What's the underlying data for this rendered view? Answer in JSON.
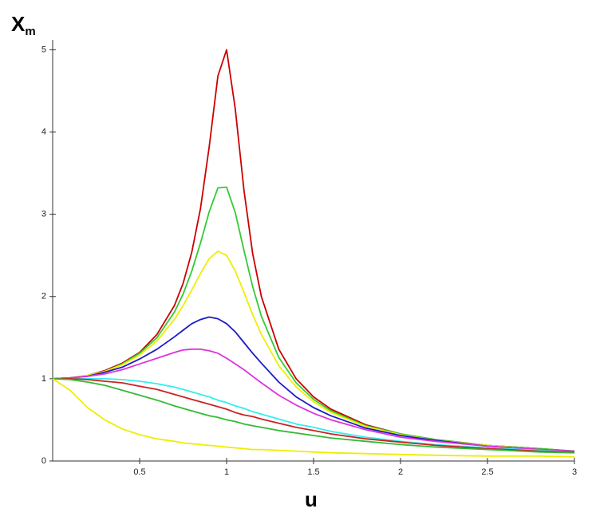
{
  "chart_data": {
    "type": "line",
    "xlabel": "u",
    "ylabel": "X",
    "ylabel_subscript": "m",
    "x": [
      0,
      0.1,
      0.2,
      0.3,
      0.4,
      0.5,
      0.6,
      0.7,
      0.75,
      0.8,
      0.85,
      0.9,
      0.95,
      1,
      1.05,
      1.1,
      1.15,
      1.2,
      1.3,
      1.4,
      1.5,
      1.6,
      1.8,
      2,
      2.2,
      2.5,
      2.8,
      3
    ],
    "series": [
      {
        "color": "#cc0000",
        "values": [
          1,
          1.01,
          1.04,
          1.1,
          1.19,
          1.32,
          1.54,
          1.89,
          2.16,
          2.54,
          3.07,
          3.82,
          4.68,
          5.0,
          4.28,
          3.29,
          2.52,
          2.0,
          1.36,
          1.0,
          0.78,
          0.63,
          0.44,
          0.33,
          0.26,
          0.19,
          0.15,
          0.12
        ]
      },
      {
        "color": "#33cc33",
        "values": [
          1,
          1.01,
          1.04,
          1.09,
          1.18,
          1.31,
          1.5,
          1.81,
          2.03,
          2.31,
          2.65,
          3.03,
          3.32,
          3.33,
          3.02,
          2.56,
          2.12,
          1.76,
          1.26,
          0.95,
          0.75,
          0.61,
          0.43,
          0.33,
          0.26,
          0.19,
          0.15,
          0.12
        ]
      },
      {
        "color": "#eeee00",
        "values": [
          1,
          1.01,
          1.04,
          1.09,
          1.17,
          1.29,
          1.46,
          1.72,
          1.89,
          2.08,
          2.28,
          2.46,
          2.55,
          2.5,
          2.31,
          2.05,
          1.78,
          1.54,
          1.16,
          0.9,
          0.72,
          0.59,
          0.42,
          0.32,
          0.25,
          0.19,
          0.14,
          0.12
        ]
      },
      {
        "color": "#1a1acc",
        "values": [
          1,
          1.01,
          1.03,
          1.08,
          1.14,
          1.24,
          1.36,
          1.51,
          1.59,
          1.67,
          1.72,
          1.75,
          1.73,
          1.67,
          1.57,
          1.44,
          1.31,
          1.19,
          0.96,
          0.78,
          0.65,
          0.55,
          0.4,
          0.31,
          0.25,
          0.18,
          0.14,
          0.12
        ]
      },
      {
        "color": "#dd33dd",
        "values": [
          1,
          1.01,
          1.03,
          1.06,
          1.11,
          1.18,
          1.25,
          1.32,
          1.35,
          1.36,
          1.36,
          1.34,
          1.31,
          1.25,
          1.18,
          1.11,
          1.03,
          0.95,
          0.8,
          0.68,
          0.58,
          0.5,
          0.38,
          0.29,
          0.24,
          0.18,
          0.14,
          0.12
        ]
      },
      {
        "color": "#33eeee",
        "values": [
          1,
          1.0,
          1.0,
          1.0,
          0.99,
          0.97,
          0.94,
          0.9,
          0.87,
          0.84,
          0.81,
          0.78,
          0.74,
          0.71,
          0.67,
          0.64,
          0.6,
          0.57,
          0.51,
          0.45,
          0.41,
          0.36,
          0.29,
          0.24,
          0.2,
          0.16,
          0.13,
          0.11
        ]
      },
      {
        "color": "#cc2222",
        "values": [
          1,
          1.0,
          0.99,
          0.97,
          0.95,
          0.91,
          0.87,
          0.81,
          0.78,
          0.75,
          0.72,
          0.69,
          0.66,
          0.63,
          0.59,
          0.56,
          0.54,
          0.51,
          0.46,
          0.41,
          0.37,
          0.33,
          0.27,
          0.23,
          0.19,
          0.15,
          0.12,
          0.11
        ]
      },
      {
        "color": "#33bb33",
        "values": [
          1,
          0.99,
          0.96,
          0.92,
          0.86,
          0.8,
          0.74,
          0.67,
          0.64,
          0.61,
          0.58,
          0.55,
          0.53,
          0.5,
          0.48,
          0.45,
          0.43,
          0.41,
          0.37,
          0.34,
          0.31,
          0.28,
          0.24,
          0.2,
          0.17,
          0.14,
          0.11,
          0.1
        ]
      },
      {
        "color": "#eeee00",
        "values": [
          1,
          0.86,
          0.65,
          0.5,
          0.39,
          0.32,
          0.27,
          0.24,
          0.22,
          0.21,
          0.2,
          0.19,
          0.18,
          0.17,
          0.16,
          0.15,
          0.14,
          0.14,
          0.13,
          0.12,
          0.11,
          0.1,
          0.09,
          0.08,
          0.07,
          0.06,
          0.06,
          0.05
        ]
      }
    ],
    "xlim": [
      0,
      3
    ],
    "xticks": [
      0.5,
      1,
      1.5,
      2,
      2.5,
      3
    ],
    "ylim": [
      0,
      5.12
    ],
    "yticks": [
      0,
      1,
      2,
      3,
      4,
      5
    ],
    "grid": false
  }
}
